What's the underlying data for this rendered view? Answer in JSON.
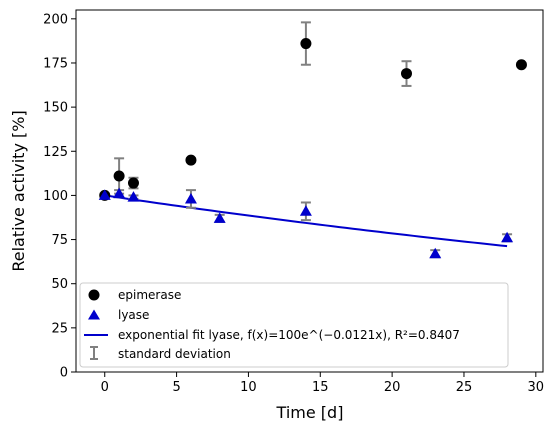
{
  "chart_data": {
    "type": "scatter",
    "xlabel": "Time [d]",
    "ylabel": "Relative activity [%]",
    "xlim": [
      -2,
      30.5
    ],
    "ylim": [
      0,
      205
    ],
    "xticks": [
      0,
      5,
      10,
      15,
      20,
      25,
      30
    ],
    "yticks": [
      0,
      25,
      50,
      75,
      100,
      125,
      150,
      175,
      200
    ],
    "grid": false,
    "legend_placement": "lower-left",
    "series": [
      {
        "name": "epimerase",
        "marker": "circle",
        "color": "#000000",
        "points": [
          {
            "x": 0,
            "y": 100,
            "err": 1
          },
          {
            "x": 1,
            "y": 111,
            "err": 10
          },
          {
            "x": 2,
            "y": 107,
            "err": 3
          },
          {
            "x": 6,
            "y": 120,
            "err": 1
          },
          {
            "x": 14,
            "y": 186,
            "err": 12
          },
          {
            "x": 21,
            "y": 169,
            "err": 7
          },
          {
            "x": 29,
            "y": 174,
            "err": 1
          }
        ]
      },
      {
        "name": "lyase",
        "marker": "triangle",
        "color": "#0000cc",
        "points": [
          {
            "x": 0,
            "y": 100,
            "err": 1
          },
          {
            "x": 1,
            "y": 101,
            "err": 2
          },
          {
            "x": 2,
            "y": 99,
            "err": 1
          },
          {
            "x": 6,
            "y": 98,
            "err": 5
          },
          {
            "x": 8,
            "y": 87,
            "err": 2
          },
          {
            "x": 14,
            "y": 91,
            "err": 5
          },
          {
            "x": 23,
            "y": 67,
            "err": 2
          },
          {
            "x": 28,
            "y": 76,
            "err": 2
          }
        ]
      }
    ],
    "fit": {
      "name": "exponential fit lyase, f(x)=100e^(−0.0121x), R²=0.8407",
      "a": 100,
      "k": -0.0121,
      "x_range": [
        0,
        28
      ],
      "color": "#0000cc"
    },
    "error_legend": "standard deviation",
    "error_color": "#808080"
  }
}
